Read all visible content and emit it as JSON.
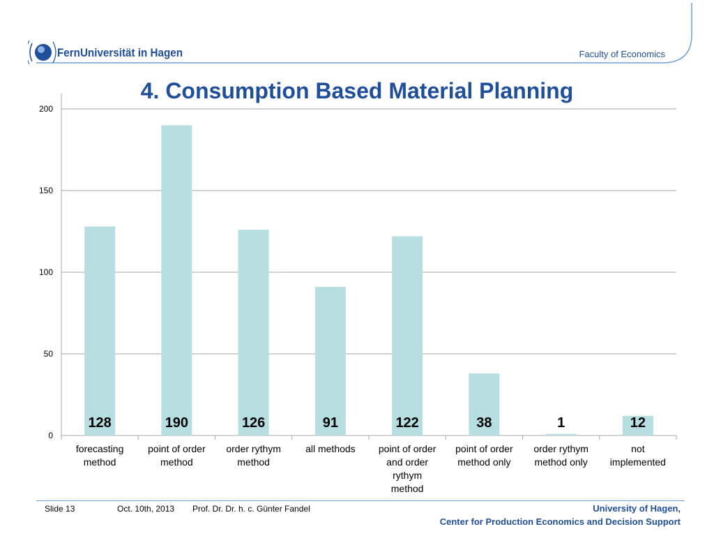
{
  "header": {
    "logo_text": "FernUniversität in Hagen",
    "faculty": "Faculty of Economics"
  },
  "title": "4. Consumption Based Material Planning",
  "chart_data": {
    "type": "bar",
    "categories": [
      [
        "forecasting",
        "method"
      ],
      [
        "point of order",
        "method"
      ],
      [
        "order rythym",
        "method"
      ],
      [
        "all methods"
      ],
      [
        "point of order",
        "and order",
        "rythym",
        "method"
      ],
      [
        "point of order",
        "method only"
      ],
      [
        "order rythym",
        "method only"
      ],
      [
        "not",
        "implemented"
      ]
    ],
    "values": [
      128,
      190,
      126,
      91,
      122,
      38,
      1,
      12
    ],
    "data_labels": [
      "128",
      "190",
      "126",
      "91",
      "122",
      "38",
      "1",
      "12"
    ],
    "ylim": [
      0,
      200
    ],
    "yticks": [
      0,
      50,
      100,
      150,
      200
    ],
    "grid": true,
    "bar_color": "#b7dfe1"
  },
  "footer": {
    "slide": "Slide 13",
    "date": "Oct. 10th, 2013",
    "author": "Prof. Dr. Dr. h. c. Günter Fandel",
    "org_line1": "University of Hagen,",
    "org_line2": "Center for Production Economics and Decision Support"
  },
  "colors": {
    "brand": "#1f4e9a",
    "accent": "#6f9fd0"
  }
}
